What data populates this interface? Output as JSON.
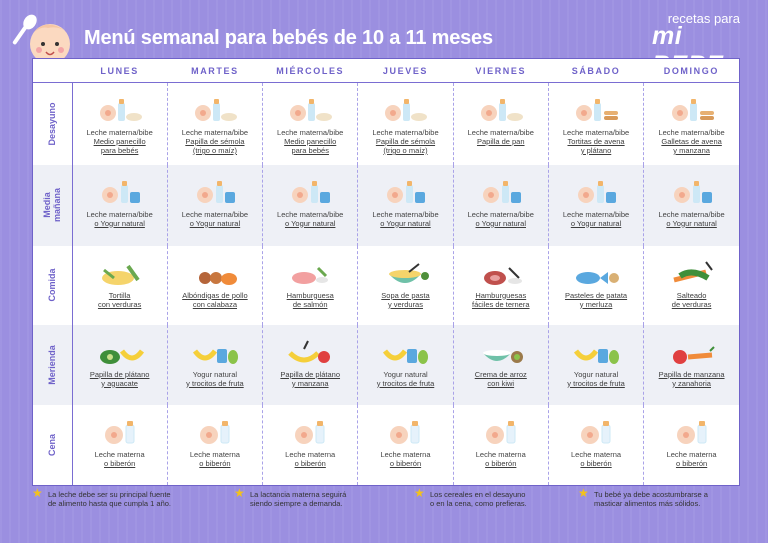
{
  "header": {
    "title": "Menú semanal para bebés de 10 a 11 meses",
    "logo_small": "recetas para",
    "logo_big": "mi BEBE"
  },
  "days": [
    "LUNES",
    "MARTES",
    "MIÉRCOLES",
    "JUEVES",
    "VIERNES",
    "SÁBADO",
    "DOMINGO"
  ],
  "rows": [
    {
      "label": "Desayuno",
      "cells": [
        {
          "l1": "Leche materna/bibe",
          "l2": "Medio panecillo\npara bebés",
          "icon": "bottle-and-cereal-icon"
        },
        {
          "l1": "Leche materna/bibe",
          "l2": "Papilla de sémola\n(trigo o maíz)",
          "icon": "bottle-and-cereal-icon"
        },
        {
          "l1": "Leche materna/bibe",
          "l2": "Medio panecillo\npara bebés",
          "icon": "bottle-and-cereal-icon"
        },
        {
          "l1": "Leche materna/bibe",
          "l2": "Papilla de sémola\n(trigo o maíz)",
          "icon": "bottle-and-cereal-icon"
        },
        {
          "l1": "Leche materna/bibe",
          "l2": "Papilla de pan",
          "icon": "bottle-and-cereal-icon"
        },
        {
          "l1": "Leche materna/bibe",
          "l2": "Tortitas de avena\ny plátano",
          "icon": "bottle-and-pancakes-icon"
        },
        {
          "l1": "Leche materna/bibe",
          "l2": "Galletas de avena\ny manzana",
          "icon": "bottle-and-pancakes-icon"
        }
      ]
    },
    {
      "label": "Media\nmañana",
      "cells": [
        {
          "l1": "Leche materna/bibe",
          "l2": "o Yogur natural",
          "icon": "bottle-and-yogurt-icon"
        },
        {
          "l1": "Leche materna/bibe",
          "l2": "o Yogur natural",
          "icon": "bottle-and-yogurt-icon"
        },
        {
          "l1": "Leche materna/bibe",
          "l2": "o Yogur natural",
          "icon": "bottle-and-yogurt-icon"
        },
        {
          "l1": "Leche materna/bibe",
          "l2": "o Yogur natural",
          "icon": "bottle-and-yogurt-icon"
        },
        {
          "l1": "Leche materna/bibe",
          "l2": "o Yogur natural",
          "icon": "bottle-and-yogurt-icon"
        },
        {
          "l1": "Leche materna/bibe",
          "l2": "o Yogur natural",
          "icon": "bottle-and-yogurt-icon"
        },
        {
          "l1": "Leche materna/bibe",
          "l2": "o Yogur natural",
          "icon": "bottle-and-yogurt-icon"
        }
      ]
    },
    {
      "label": "Comida",
      "cells": [
        {
          "l1": "",
          "l2": "Tortilla\ncon verduras",
          "icon": "omelette-icon"
        },
        {
          "l1": "",
          "l2": "Albóndigas de pollo\ncon calabaza",
          "icon": "meatballs-icon"
        },
        {
          "l1": "",
          "l2": "Hamburguesa\nde salmón",
          "icon": "salmon-icon"
        },
        {
          "l1": "",
          "l2": "Sopa de pasta\ny verduras",
          "icon": "soup-icon"
        },
        {
          "l1": "",
          "l2": "Hamburguesas\nfáciles de ternera",
          "icon": "beef-icon"
        },
        {
          "l1": "",
          "l2": "Pasteles de patata\ny merluza",
          "icon": "fish-icon"
        },
        {
          "l1": "",
          "l2": "Salteado\nde verduras",
          "icon": "vegetables-icon"
        }
      ]
    },
    {
      "label": "Merienda",
      "cells": [
        {
          "l1": "",
          "l2": "Papilla de plátano\ny aguacate",
          "icon": "banana-avocado-icon"
        },
        {
          "l1": "Yogur natural",
          "l2": "y trocitos de fruta",
          "icon": "yogurt-fruit-icon"
        },
        {
          "l1": "",
          "l2": "Papilla de plátano\ny manzana",
          "icon": "banana-apple-icon"
        },
        {
          "l1": "Yogur natural",
          "l2": "y trocitos de fruta",
          "icon": "yogurt-fruit-icon"
        },
        {
          "l1": "",
          "l2": "Crema de arroz\ncon kiwi",
          "icon": "rice-kiwi-icon"
        },
        {
          "l1": "Yogur natural",
          "l2": "y trocitos de fruta",
          "icon": "yogurt-fruit-icon"
        },
        {
          "l1": "",
          "l2": "Papilla de manzana\ny zanahoria",
          "icon": "apple-carrot-icon"
        }
      ]
    },
    {
      "label": "Cena",
      "cells": [
        {
          "l1": "Leche materna",
          "l2": "o biberón",
          "icon": "breast-and-bottle-icon"
        },
        {
          "l1": "Leche materna",
          "l2": "o biberón",
          "icon": "breast-and-bottle-icon"
        },
        {
          "l1": "Leche materna",
          "l2": "o biberón",
          "icon": "breast-and-bottle-icon"
        },
        {
          "l1": "Leche materna",
          "l2": "o biberón",
          "icon": "breast-and-bottle-icon"
        },
        {
          "l1": "Leche materna",
          "l2": "o biberón",
          "icon": "breast-and-bottle-icon"
        },
        {
          "l1": "Leche materna",
          "l2": "o biberón",
          "icon": "breast-and-bottle-icon"
        },
        {
          "l1": "Leche materna",
          "l2": "o biberón",
          "icon": "breast-and-bottle-icon"
        }
      ]
    }
  ],
  "notes": [
    "La leche debe ser su principal fuente\nde alimento hasta que cumpla 1 año.",
    "La lactancia materna seguirá\nsiendo siempre a demanda.",
    "Los cereales en el desayuno\no en la cena, como prefieras.",
    "Tu bebé ya debe acostumbrarse a\nmasticar alimentos más sólidos."
  ],
  "colors": {
    "background": "#9b8fe0",
    "accent": "#6f62c9",
    "alt_row": "#eef0f6",
    "star": "#f3c21b"
  }
}
